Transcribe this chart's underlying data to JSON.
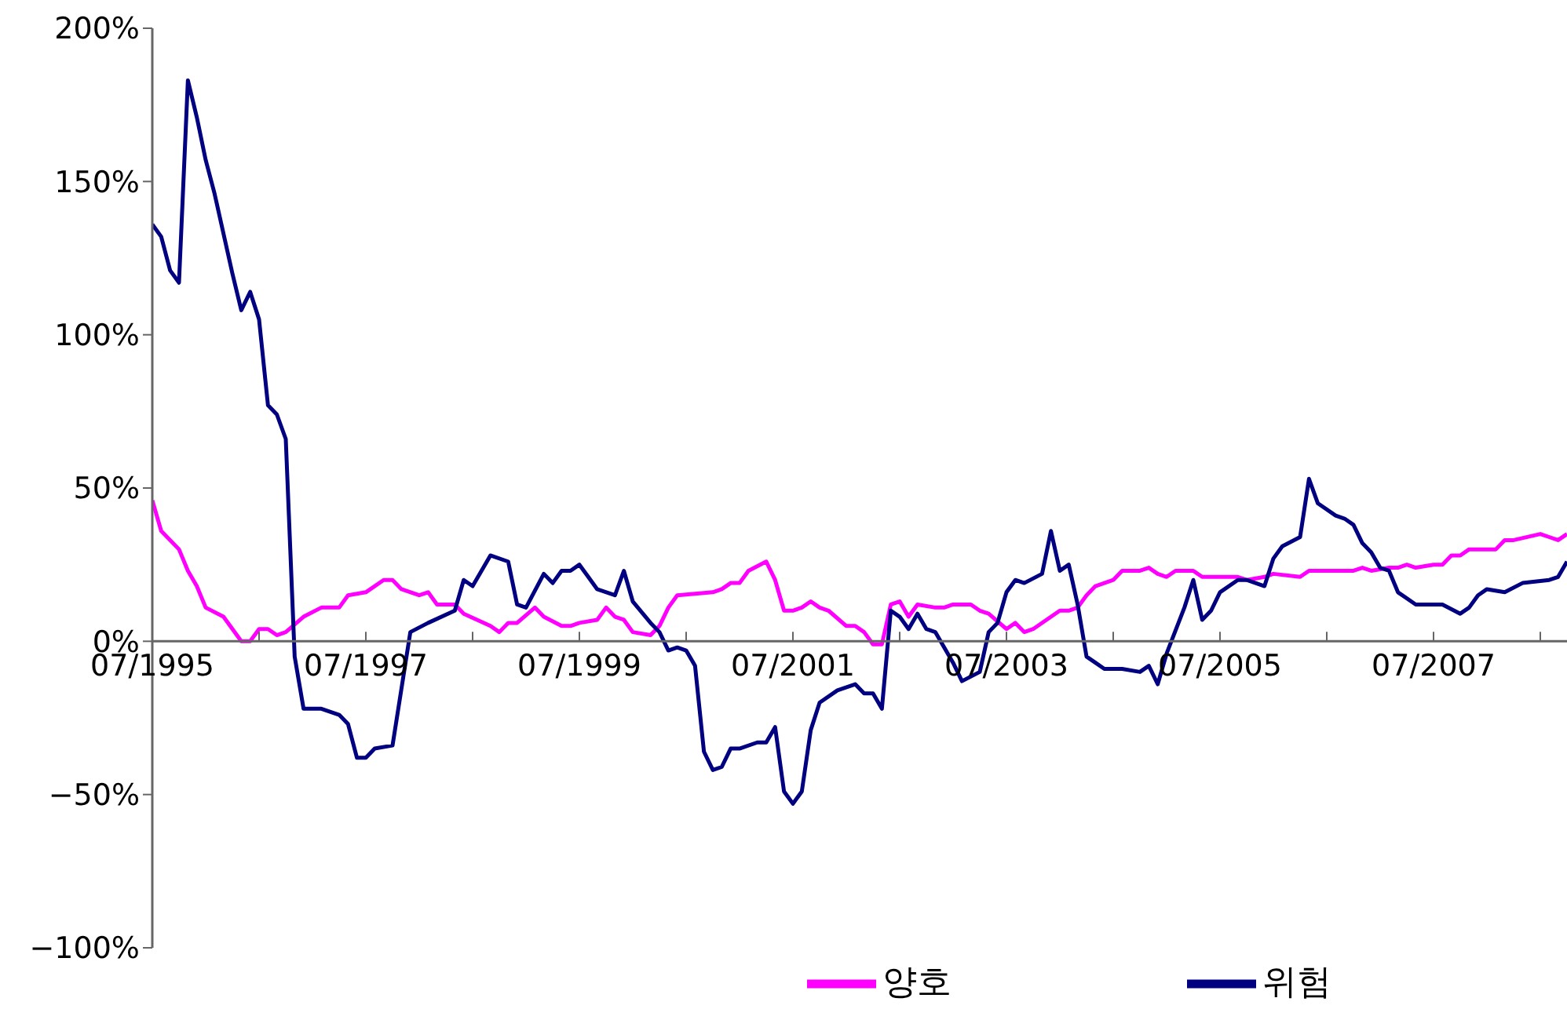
{
  "chart_data": {
    "type": "line",
    "xlim": [
      "1995-07",
      "2008-10"
    ],
    "xticks": [
      {
        "value": "1995-07",
        "label": "07/1995"
      },
      {
        "value": "1996-07",
        "label": null
      },
      {
        "value": "1997-07",
        "label": "07/1997"
      },
      {
        "value": "1998-07",
        "label": null
      },
      {
        "value": "1999-07",
        "label": "07/1999"
      },
      {
        "value": "2000-07",
        "label": null
      },
      {
        "value": "2001-07",
        "label": "07/2001"
      },
      {
        "value": "2002-07",
        "label": null
      },
      {
        "value": "2003-07",
        "label": "07/2003"
      },
      {
        "value": "2004-07",
        "label": null
      },
      {
        "value": "2005-07",
        "label": "07/2005"
      },
      {
        "value": "2006-07",
        "label": null
      },
      {
        "value": "2007-07",
        "label": "07/2007"
      },
      {
        "value": "2008-07",
        "label": null
      }
    ],
    "ylim": [
      -100,
      200
    ],
    "yticks": [
      {
        "value": -100,
        "label": "−100%"
      },
      {
        "value": -50,
        "label": "−50%"
      },
      {
        "value": 0,
        "label": "0%"
      },
      {
        "value": 50,
        "label": "50%"
      },
      {
        "value": 100,
        "label": "100%"
      },
      {
        "value": 150,
        "label": "150%"
      },
      {
        "value": 200,
        "label": "200%"
      }
    ],
    "grid": false,
    "legend": "bottom right",
    "marker": "none",
    "line_style": "solid",
    "series": [
      {
        "name": "양호",
        "color": "#ff00ff",
        "x": [
          "1995-07",
          "1995-08",
          "1995-10",
          "1995-11",
          "1995-12",
          "1996-01",
          "1996-03",
          "1996-05",
          "1996-06",
          "1996-07",
          "1996-08",
          "1996-09",
          "1996-10",
          "1996-12",
          "1997-02",
          "1997-04",
          "1997-05",
          "1997-07",
          "1997-09",
          "1997-10",
          "1997-11",
          "1998-01",
          "1998-02",
          "1998-03",
          "1998-05",
          "1998-06",
          "1998-09",
          "1998-10",
          "1998-11",
          "1998-12",
          "1999-02",
          "1999-03",
          "1999-05",
          "1999-06",
          "1999-07",
          "1999-09",
          "1999-10",
          "1999-11",
          "1999-12",
          "2000-01",
          "2000-03",
          "2000-04",
          "2000-05",
          "2000-06",
          "2000-10",
          "2000-11",
          "2000-12",
          "2001-01",
          "2001-02",
          "2001-04",
          "2001-05",
          "2001-06",
          "2001-07",
          "2001-08",
          "2001-09",
          "2001-10",
          "2001-11",
          "2002-01",
          "2002-02",
          "2002-03",
          "2002-04",
          "2002-05",
          "2002-06",
          "2002-07",
          "2002-08",
          "2002-09",
          "2002-11",
          "2002-12",
          "2003-01",
          "2003-03",
          "2003-04",
          "2003-05",
          "2003-07",
          "2003-08",
          "2003-09",
          "2003-10",
          "2004-01",
          "2004-02",
          "2004-03",
          "2004-04",
          "2004-05",
          "2004-07",
          "2004-08",
          "2004-10",
          "2004-11",
          "2004-12",
          "2005-01",
          "2005-02",
          "2005-03",
          "2005-04",
          "2005-05",
          "2005-09",
          "2005-10",
          "2005-12",
          "2006-01",
          "2006-04",
          "2006-05",
          "2006-10",
          "2006-11",
          "2006-12",
          "2007-02",
          "2007-03",
          "2007-04",
          "2007-05",
          "2007-07",
          "2007-08",
          "2007-09",
          "2007-10",
          "2007-11",
          "2008-02",
          "2008-03",
          "2008-04",
          "2008-07",
          "2008-08",
          "2008-09",
          "2008-10"
        ],
        "values": [
          46,
          36,
          30,
          23,
          18,
          11,
          8,
          0,
          0,
          4,
          4,
          2,
          3,
          8,
          11,
          11,
          15,
          16,
          20,
          20,
          17,
          15,
          16,
          12,
          12,
          9,
          5,
          3,
          6,
          6,
          11,
          8,
          5,
          5,
          6,
          7,
          11,
          8,
          7,
          3,
          2,
          5,
          11,
          15,
          16,
          17,
          19,
          19,
          23,
          26,
          20,
          10,
          10,
          11,
          13,
          11,
          10,
          5,
          5,
          3,
          -1,
          -1,
          12,
          13,
          8,
          12,
          11,
          11,
          12,
          12,
          10,
          9,
          4,
          6,
          3,
          4,
          10,
          10,
          11,
          15,
          18,
          20,
          23,
          23,
          24,
          22,
          21,
          23,
          23,
          23,
          21,
          21,
          20,
          21,
          22,
          21,
          23,
          23,
          24,
          23,
          24,
          24,
          25,
          24,
          25,
          25,
          28,
          28,
          30,
          30,
          33,
          33,
          35,
          34,
          33,
          35
        ]
      },
      {
        "name": "위험",
        "color": "#000080",
        "x": [
          "1995-07",
          "1995-08",
          "1995-09",
          "1995-10",
          "1995-11",
          "1995-12",
          "1996-01",
          "1996-02",
          "1996-03",
          "1996-04",
          "1996-05",
          "1996-06",
          "1996-07",
          "1996-08",
          "1996-09",
          "1996-10",
          "1996-11",
          "1996-12",
          "1997-02",
          "1997-04",
          "1997-05",
          "1997-06",
          "1997-07",
          "1997-08",
          "1997-10",
          "1997-12",
          "1998-02",
          "1998-05",
          "1998-06",
          "1998-07",
          "1998-09",
          "1998-11",
          "1998-12",
          "1999-01",
          "1999-03",
          "1999-04",
          "1999-05",
          "1999-06",
          "1999-07",
          "1999-08",
          "1999-09",
          "1999-11",
          "1999-12",
          "2000-01",
          "2000-03",
          "2000-04",
          "2000-05",
          "2000-06",
          "2000-07",
          "2000-08",
          "2000-09",
          "2000-10",
          "2000-11",
          "2000-12",
          "2001-01",
          "2001-03",
          "2001-04",
          "2001-05",
          "2001-06",
          "2001-07",
          "2001-08",
          "2001-09",
          "2001-10",
          "2001-12",
          "2002-02",
          "2002-03",
          "2002-04",
          "2002-05",
          "2002-06",
          "2002-07",
          "2002-08",
          "2002-09",
          "2002-10",
          "2002-11",
          "2003-01",
          "2003-02",
          "2003-04",
          "2003-05",
          "2003-06",
          "2003-07",
          "2003-08",
          "2003-09",
          "2003-11",
          "2003-12",
          "2004-01",
          "2004-02",
          "2004-03",
          "2004-04",
          "2004-05",
          "2004-06",
          "2004-08",
          "2004-10",
          "2004-11",
          "2004-12",
          "2005-01",
          "2005-03",
          "2005-04",
          "2005-05",
          "2005-06",
          "2005-07",
          "2005-09",
          "2005-10",
          "2005-11",
          "2005-12",
          "2006-01",
          "2006-02",
          "2006-04",
          "2006-05",
          "2006-06",
          "2006-08",
          "2006-09",
          "2006-10",
          "2006-11",
          "2006-12",
          "2007-01",
          "2007-02",
          "2007-03",
          "2007-05",
          "2007-08",
          "2007-10",
          "2007-11",
          "2007-12",
          "2008-01",
          "2008-03",
          "2008-05",
          "2008-08",
          "2008-09",
          "2008-10"
        ],
        "values": [
          136,
          132,
          121,
          117,
          183,
          171,
          157,
          146,
          133,
          120,
          108,
          114,
          105,
          77,
          74,
          66,
          -5,
          -22,
          -22,
          -24,
          -27,
          -38,
          -38,
          -35,
          -34,
          3,
          6,
          10,
          20,
          18,
          28,
          26,
          12,
          11,
          22,
          19,
          23,
          23,
          25,
          21,
          17,
          15,
          23,
          13,
          6,
          3,
          -3,
          -2,
          -3,
          -8,
          -36,
          -42,
          -41,
          -35,
          -35,
          -33,
          -33,
          -28,
          -49,
          -53,
          -49,
          -29,
          -20,
          -16,
          -14,
          -17,
          -17,
          -22,
          10,
          8,
          4,
          9,
          4,
          3,
          -7,
          -13,
          -10,
          3,
          6,
          16,
          20,
          19,
          22,
          36,
          23,
          25,
          12,
          -5,
          -7,
          -9,
          -9,
          -10,
          -8,
          -14,
          -4,
          11,
          20,
          7,
          10,
          16,
          20,
          20,
          19,
          18,
          27,
          31,
          34,
          53,
          45,
          41,
          40,
          38,
          32,
          29,
          24,
          23,
          16,
          12,
          12,
          9,
          11,
          15,
          17,
          16,
          19,
          20,
          21,
          26
        ]
      }
    ]
  }
}
